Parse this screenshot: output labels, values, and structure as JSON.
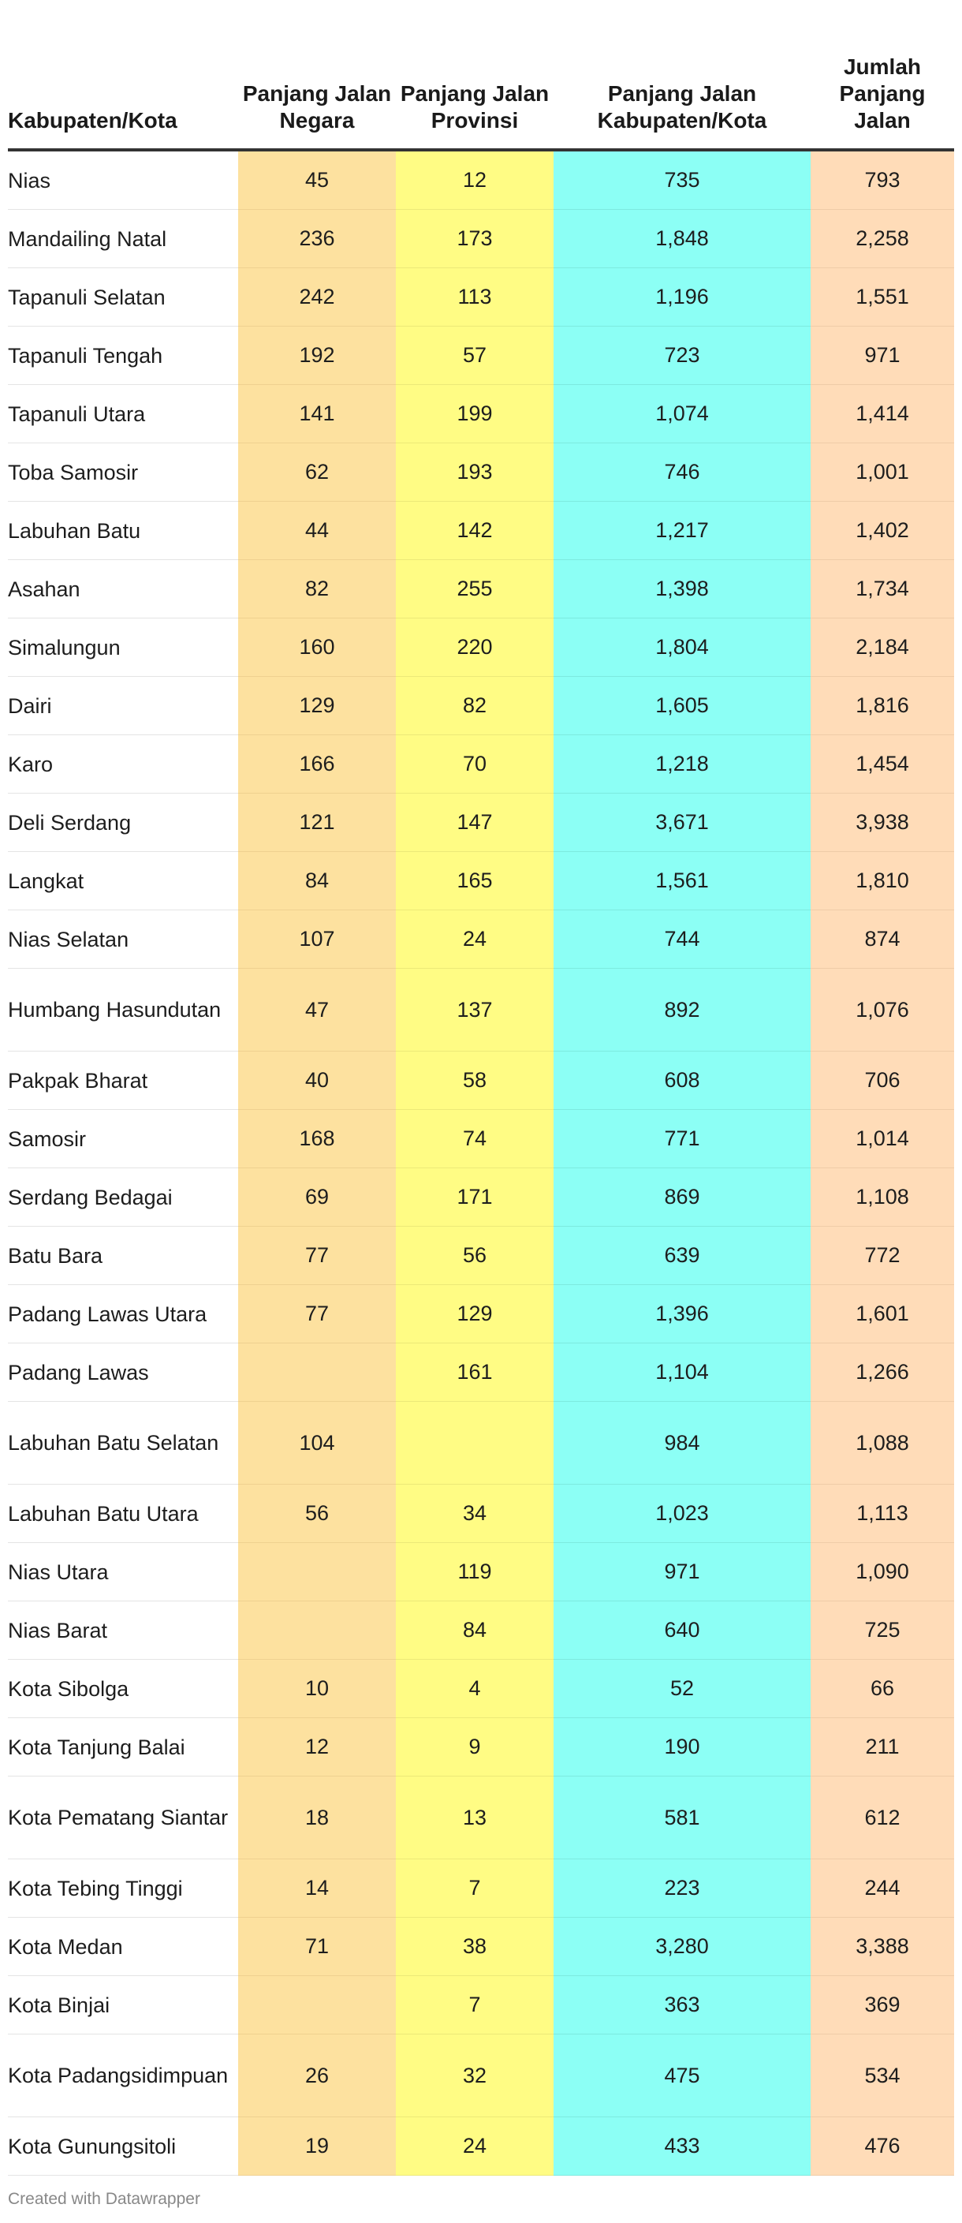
{
  "chart_data": {
    "type": "table",
    "headers": [
      "Kabupaten/Kota",
      "Panjang Jalan Negara",
      "Panjang Jalan Provinsi",
      "Panjang Jalan Kabupaten/Kota",
      "Jumlah Panjang Jalan"
    ],
    "column_colors": [
      "#ffffff",
      "#fde19f",
      "#fffc84",
      "#8cfff5",
      "#ffdcb8"
    ],
    "rows": [
      [
        "Nias",
        "45",
        "12",
        "735",
        "793"
      ],
      [
        "Mandailing Natal",
        "236",
        "173",
        "1,848",
        "2,258"
      ],
      [
        "Tapanuli Selatan",
        "242",
        "113",
        "1,196",
        "1,551"
      ],
      [
        "Tapanuli Tengah",
        "192",
        "57",
        "723",
        "971"
      ],
      [
        "Tapanuli Utara",
        "141",
        "199",
        "1,074",
        "1,414"
      ],
      [
        "Toba Samosir",
        "62",
        "193",
        "746",
        "1,001"
      ],
      [
        "Labuhan Batu",
        "44",
        "142",
        "1,217",
        "1,402"
      ],
      [
        "Asahan",
        "82",
        "255",
        "1,398",
        "1,734"
      ],
      [
        "Simalungun",
        "160",
        "220",
        "1,804",
        "2,184"
      ],
      [
        "Dairi",
        "129",
        "82",
        "1,605",
        "1,816"
      ],
      [
        "Karo",
        "166",
        "70",
        "1,218",
        "1,454"
      ],
      [
        "Deli Serdang",
        "121",
        "147",
        "3,671",
        "3,938"
      ],
      [
        "Langkat",
        "84",
        "165",
        "1,561",
        "1,810"
      ],
      [
        "Nias Selatan",
        "107",
        "24",
        "744",
        "874"
      ],
      [
        "Humbang Hasundutan",
        "47",
        "137",
        "892",
        "1,076"
      ],
      [
        "Pakpak Bharat",
        "40",
        "58",
        "608",
        "706"
      ],
      [
        "Samosir",
        "168",
        "74",
        "771",
        "1,014"
      ],
      [
        "Serdang Bedagai",
        "69",
        "171",
        "869",
        "1,108"
      ],
      [
        "Batu Bara",
        "77",
        "56",
        "639",
        "772"
      ],
      [
        "Padang Lawas Utara",
        "77",
        "129",
        "1,396",
        "1,601"
      ],
      [
        "Padang Lawas",
        "",
        "161",
        "1,104",
        "1,266"
      ],
      [
        "Labuhan Batu Selatan",
        "104",
        "",
        "984",
        "1,088"
      ],
      [
        "Labuhan Batu Utara",
        "56",
        "34",
        "1,023",
        "1,113"
      ],
      [
        "Nias Utara",
        "",
        "119",
        "971",
        "1,090"
      ],
      [
        "Nias Barat",
        "",
        "84",
        "640",
        "725"
      ],
      [
        "Kota Sibolga",
        "10",
        "4",
        "52",
        "66"
      ],
      [
        "Kota Tanjung Balai",
        "12",
        "9",
        "190",
        "211"
      ],
      [
        "Kota Pematang Siantar",
        "18",
        "13",
        "581",
        "612"
      ],
      [
        "Kota Tebing Tinggi",
        "14",
        "7",
        "223",
        "244"
      ],
      [
        "Kota Medan",
        "71",
        "38",
        "3,280",
        "3,388"
      ],
      [
        "Kota Binjai",
        "",
        "7",
        "363",
        "369"
      ],
      [
        "Kota Padangsidimpuan",
        "26",
        "32",
        "475",
        "534"
      ],
      [
        "Kota Gunungsitoli",
        "19",
        "24",
        "433",
        "476"
      ]
    ]
  },
  "footer": "Created with Datawrapper"
}
